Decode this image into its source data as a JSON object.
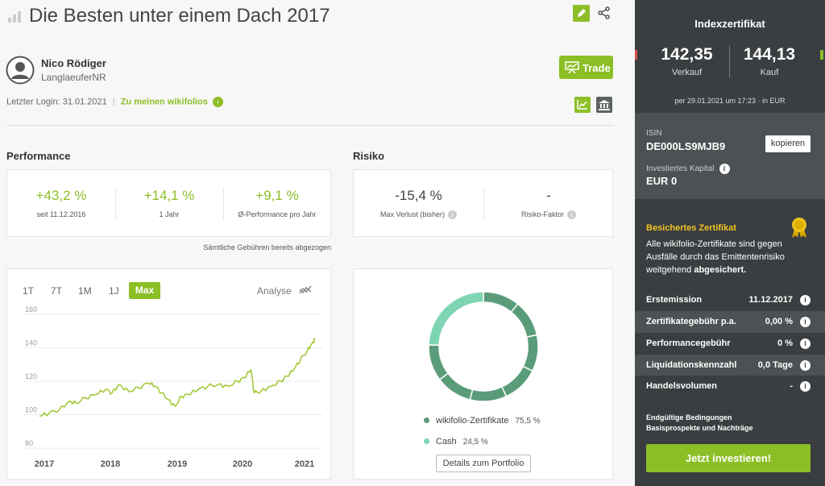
{
  "header": {
    "title": "Die Besten unter einem Dach 2017"
  },
  "trader": {
    "name": "Nico Rödiger",
    "username": "LanglaeuferNR",
    "last_login": "Letzter Login: 31.01.2021",
    "separator": "|",
    "wikifolios_link": "Zu meinen wikifolios",
    "trade_label": "Trade"
  },
  "performance": {
    "title": "Performance",
    "items": [
      {
        "value": "+43,2 %",
        "label": "seit 11.12.2016"
      },
      {
        "value": "+14,1 %",
        "label": "1 Jahr"
      },
      {
        "value": "+9,1 %",
        "label": "Ø-Performance pro Jahr"
      }
    ],
    "fees_note": "Sämtliche Gebühren bereits abgezogen"
  },
  "risk": {
    "title": "Risiko",
    "items": [
      {
        "value": "-15,4 %",
        "label": "Max Verlust (bisher)"
      },
      {
        "value": "-",
        "label": "Risiko-Faktor"
      }
    ]
  },
  "chart_controls": {
    "ranges": [
      "1T",
      "7T",
      "1M",
      "1J",
      "Max"
    ],
    "active": "Max",
    "analyse_label": "Analyse"
  },
  "chart_data": [
    {
      "type": "line",
      "x_ticks": [
        "2017",
        "2018",
        "2019",
        "2020",
        "2021"
      ],
      "y_ticks": [
        160,
        140,
        120,
        100,
        80
      ],
      "ylim": [
        80,
        160
      ],
      "series": [
        {
          "points": [
            [
              2016.95,
              99
            ],
            [
              2017.1,
              101
            ],
            [
              2017.25,
              103
            ],
            [
              2017.4,
              108
            ],
            [
              2017.5,
              107
            ],
            [
              2017.65,
              110
            ],
            [
              2017.8,
              112
            ],
            [
              2017.95,
              115
            ],
            [
              2018.05,
              113
            ],
            [
              2018.15,
              118
            ],
            [
              2018.3,
              114
            ],
            [
              2018.45,
              116
            ],
            [
              2018.6,
              119
            ],
            [
              2018.7,
              117
            ],
            [
              2018.8,
              113
            ],
            [
              2018.9,
              109
            ],
            [
              2019.0,
              105
            ],
            [
              2019.1,
              111
            ],
            [
              2019.2,
              112
            ],
            [
              2019.35,
              115
            ],
            [
              2019.5,
              117
            ],
            [
              2019.65,
              118
            ],
            [
              2019.8,
              117
            ],
            [
              2019.95,
              120
            ],
            [
              2020.05,
              122
            ],
            [
              2020.15,
              127
            ],
            [
              2020.2,
              113
            ],
            [
              2020.3,
              114
            ],
            [
              2020.45,
              117
            ],
            [
              2020.6,
              120
            ],
            [
              2020.7,
              123
            ],
            [
              2020.8,
              127
            ],
            [
              2020.9,
              133
            ],
            [
              2021.0,
              138
            ],
            [
              2021.08,
              143
            ],
            [
              2021.12,
              145
            ]
          ]
        }
      ]
    },
    {
      "type": "pie",
      "slices": [
        {
          "label": "wikifolio-Zertifikate",
          "value": 75.5,
          "display": "75,5 %",
          "color": "#5a9c7a"
        },
        {
          "label": "Cash",
          "value": 24.5,
          "display": "24,5 %",
          "color": "#7dd5b3"
        }
      ]
    }
  ],
  "portfolio_button": "Details zum Portfolio",
  "sidebar": {
    "title": "Indexzertifikat",
    "sell_price": "142,35",
    "sell_label": "Verkauf",
    "buy_price": "144,13",
    "buy_label": "Kauf",
    "timestamp": "per 29.01.2021 um 17:23 · in EUR",
    "isin_label": "ISIN",
    "isin_value": "DE000LS9MJB9",
    "copy_label": "kopieren",
    "capital_label": "Investiertes Kapital",
    "capital_value": "EUR 0",
    "secured_title": "Besichertes Zertifikat",
    "secured_text": "Alle wikifolio-Zertifikate sind gegen Ausfälle durch das Emittentenrisiko weitgehend",
    "secured_bold": "abgesichert.",
    "details": [
      {
        "label": "Erstemission",
        "value": "11.12.2017"
      },
      {
        "label": "Zertifikategebühr p.a.",
        "value": "0,00 %"
      },
      {
        "label": "Performancegebühr",
        "value": "0 %"
      },
      {
        "label": "Liquidationskennzahl",
        "value": "0,0 Tage"
      },
      {
        "label": "Handelsvolumen",
        "value": "-"
      }
    ],
    "terms_link": "Endgültige Bedingungen",
    "prospect_link": "Basisprospekte und Nachträge",
    "invest_button": "Jetzt investieren!",
    "colors": {
      "bg": "#3a3e40",
      "band": "#4c5153",
      "accent": "#8cbf26"
    }
  }
}
